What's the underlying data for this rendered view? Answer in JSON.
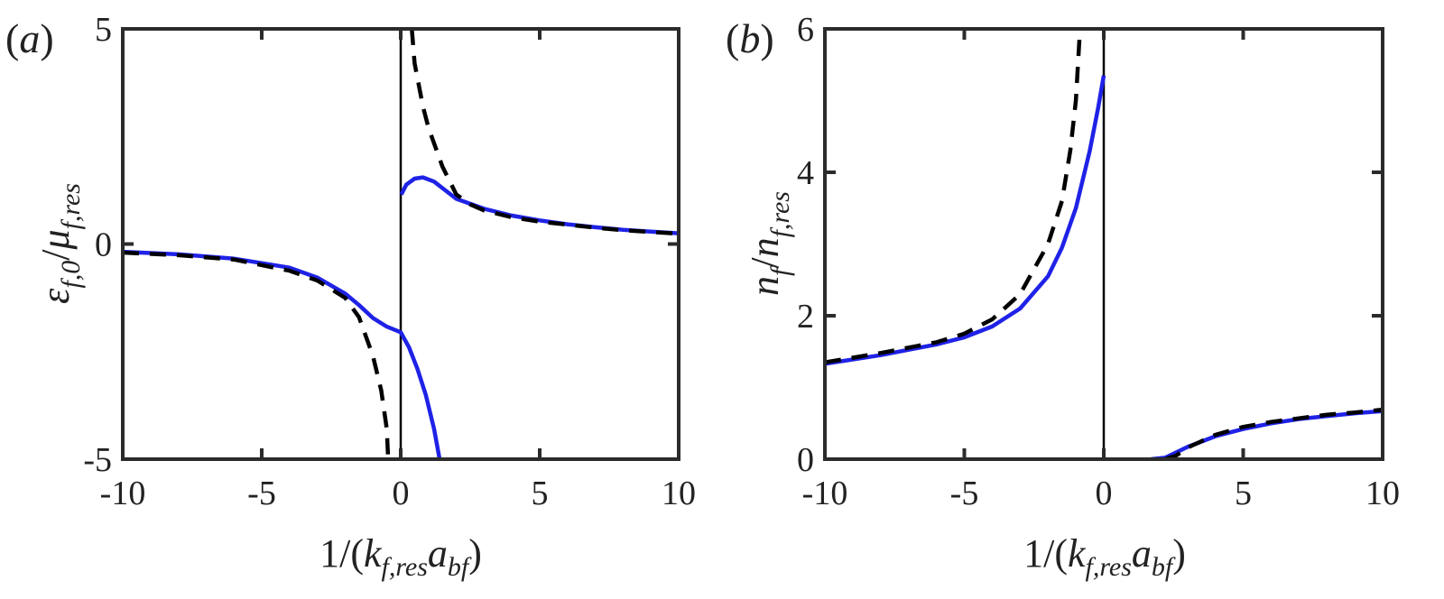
{
  "colors": {
    "solid": "#1f22e6",
    "dashed": "#000000",
    "axis": "#2b2b2b"
  },
  "chart_data": [
    {
      "type": "line",
      "panel_label": {
        "open": "(",
        "letter": "a",
        "close": ")"
      },
      "xlabel": {
        "pre": "1/(",
        "k": "k",
        "k_sub": "f,res",
        "a": "a",
        "a_sub": "bf",
        "post": ")"
      },
      "ylabel": {
        "eps": "ε",
        "eps_sub": "f,0",
        "slash": "/",
        "mu": "μ",
        "mu_sub": "f,res"
      },
      "xlim": [
        -10,
        10
      ],
      "ylim": [
        -5,
        5
      ],
      "xticks": [
        "-10",
        "-5",
        "0",
        "5",
        "10"
      ],
      "yticks": [
        "-5",
        "0",
        "5"
      ],
      "vline_x": 0,
      "series": [
        {
          "style": "solid",
          "segments": [
            [
              [
                -10,
                -0.18
              ],
              [
                -8,
                -0.24
              ],
              [
                -6,
                -0.34
              ],
              [
                -4,
                -0.55
              ],
              [
                -3,
                -0.78
              ],
              [
                -2,
                -1.15
              ],
              [
                -1.5,
                -1.42
              ],
              [
                -1,
                -1.72
              ],
              [
                -0.5,
                -1.92
              ],
              [
                0,
                -2.05
              ],
              [
                0.3,
                -2.4
              ],
              [
                0.6,
                -2.9
              ],
              [
                0.9,
                -3.5
              ],
              [
                1.2,
                -4.3
              ],
              [
                1.4,
                -5.0
              ]
            ],
            [
              [
                0.02,
                1.15
              ],
              [
                0.2,
                1.38
              ],
              [
                0.5,
                1.52
              ],
              [
                0.8,
                1.55
              ],
              [
                1.2,
                1.45
              ],
              [
                1.6,
                1.25
              ],
              [
                2,
                1.05
              ],
              [
                3,
                0.82
              ],
              [
                4,
                0.66
              ],
              [
                5,
                0.55
              ],
              [
                6,
                0.46
              ],
              [
                7,
                0.39
              ],
              [
                8,
                0.33
              ],
              [
                9,
                0.29
              ],
              [
                10,
                0.25
              ]
            ]
          ]
        },
        {
          "style": "dashed",
          "segments": [
            [
              [
                -10,
                -0.2
              ],
              [
                -8,
                -0.26
              ],
              [
                -6,
                -0.36
              ],
              [
                -4,
                -0.62
              ],
              [
                -3,
                -0.85
              ],
              [
                -2,
                -1.25
              ],
              [
                -1.5,
                -1.7
              ],
              [
                -1,
                -2.6
              ],
              [
                -0.7,
                -3.4
              ],
              [
                -0.5,
                -4.3
              ],
              [
                -0.45,
                -5.0
              ]
            ],
            [
              [
                0.4,
                5.0
              ],
              [
                0.5,
                4.2
              ],
              [
                0.8,
                3.2
              ],
              [
                1.0,
                2.7
              ],
              [
                1.5,
                1.8
              ],
              [
                2,
                1.15
              ],
              [
                2.5,
                0.92
              ],
              [
                3,
                0.78
              ],
              [
                4,
                0.62
              ],
              [
                5,
                0.52
              ],
              [
                6,
                0.45
              ],
              [
                7,
                0.38
              ],
              [
                8,
                0.32
              ],
              [
                10,
                0.24
              ]
            ]
          ]
        }
      ]
    },
    {
      "type": "line",
      "panel_label": {
        "open": "(",
        "letter": "b",
        "close": ")"
      },
      "xlabel": {
        "pre": "1/(",
        "k": "k",
        "k_sub": "f,res",
        "a": "a",
        "a_sub": "bf",
        "post": ")"
      },
      "ylabel": {
        "n1": "n",
        "n1_sub": "f",
        "slash": "/",
        "n2": "n",
        "n2_sub": "f,res"
      },
      "xlim": [
        -10,
        10
      ],
      "ylim": [
        0,
        6
      ],
      "xticks": [
        "-10",
        "-5",
        "0",
        "5",
        "10"
      ],
      "yticks": [
        "0",
        "2",
        "4",
        "6"
      ],
      "vline_x": 0,
      "series": [
        {
          "style": "solid",
          "segments": [
            [
              [
                -10,
                1.33
              ],
              [
                -8,
                1.45
              ],
              [
                -6,
                1.6
              ],
              [
                -5,
                1.7
              ],
              [
                -4,
                1.85
              ],
              [
                -3,
                2.1
              ],
              [
                -2,
                2.55
              ],
              [
                -1.5,
                2.95
              ],
              [
                -1,
                3.5
              ],
              [
                -0.5,
                4.3
              ],
              [
                -0.2,
                4.9
              ],
              [
                0,
                5.35
              ]
            ],
            [
              [
                1.7,
                0
              ],
              [
                2.2,
                0.02
              ],
              [
                3,
                0.17
              ],
              [
                4,
                0.32
              ],
              [
                5,
                0.42
              ],
              [
                6,
                0.5
              ],
              [
                7,
                0.56
              ],
              [
                8,
                0.6
              ],
              [
                9,
                0.64
              ],
              [
                10,
                0.67
              ]
            ]
          ]
        },
        {
          "style": "dashed",
          "segments": [
            [
              [
                -10,
                1.35
              ],
              [
                -8,
                1.48
              ],
              [
                -6,
                1.63
              ],
              [
                -5,
                1.75
              ],
              [
                -4,
                1.95
              ],
              [
                -3,
                2.3
              ],
              [
                -2,
                3.0
              ],
              [
                -1.5,
                3.6
              ],
              [
                -1.2,
                4.3
              ],
              [
                -1,
                5.0
              ],
              [
                -0.85,
                6.0
              ]
            ],
            [
              [
                2.2,
                0
              ],
              [
                2.6,
                0.05
              ],
              [
                3,
                0.16
              ],
              [
                4,
                0.34
              ],
              [
                5,
                0.45
              ],
              [
                6,
                0.52
              ],
              [
                7,
                0.57
              ],
              [
                8,
                0.62
              ],
              [
                9,
                0.65
              ],
              [
                10,
                0.69
              ]
            ]
          ]
        }
      ]
    }
  ]
}
